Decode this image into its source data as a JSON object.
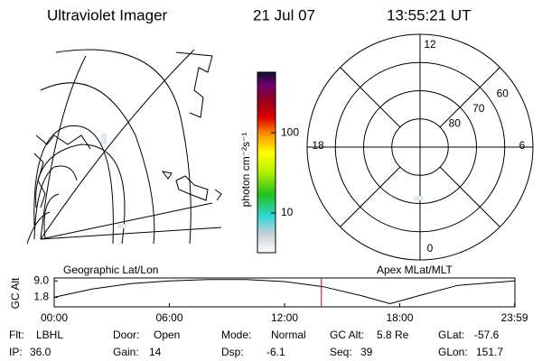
{
  "header": {
    "title": "Ultraviolet Imager",
    "date": "21 Jul 07",
    "time": "13:55:21 UT"
  },
  "map": {
    "label": "Geographic Lat/Lon"
  },
  "colorbar": {
    "label": "photon cm⁻²s⁻¹",
    "scale": "log",
    "lim": [
      3.2,
      570
    ],
    "ticks": [
      100,
      10
    ]
  },
  "polar": {
    "label": "Apex MLat/MLT",
    "mlt_ticks": [
      12,
      18,
      6,
      0
    ],
    "lat_lim": [
      50,
      90
    ],
    "lat_ticks": [
      60,
      70,
      80
    ]
  },
  "gc_alt": {
    "label": "GC Alt",
    "ylim": [
      -2.4,
      10.3
    ],
    "yticks": [
      {
        "value": 9.0,
        "label": "9.0"
      },
      {
        "value": 1.8,
        "label": "1.8"
      }
    ],
    "xlim": [
      0,
      24
    ],
    "xticks": [
      {
        "value": 0,
        "label": "00:00"
      },
      {
        "value": 6,
        "label": "06:00"
      },
      {
        "value": 12,
        "label": "12:00"
      },
      {
        "value": 18,
        "label": "18:00"
      },
      {
        "value": 23.98,
        "label": "23:59"
      }
    ],
    "x": [
      0,
      2,
      4,
      6,
      8,
      10,
      12,
      14,
      16,
      17.5,
      19,
      21,
      23.98
    ],
    "values": [
      1.8,
      5.5,
      7.8,
      9.0,
      9.6,
      9.6,
      8.7,
      6.5,
      2.5,
      -1.0,
      2.5,
      7.0,
      9.0
    ],
    "marker": 13.92
  },
  "footer": [
    [
      {
        "label": "Flt:",
        "value": "LBHL"
      },
      {
        "label": "Door:",
        "value": "Open"
      },
      {
        "label": "Mode:",
        "value": "Normal"
      },
      {
        "label": "GC Alt:",
        "value": "5.8 Re"
      },
      {
        "label": "GLat:",
        "value": "-57.6"
      }
    ],
    [
      {
        "label": "IP:",
        "value": "36.0"
      },
      {
        "label": "Gain:",
        "value": "14"
      },
      {
        "label": "Dsp:",
        "value": "-6.1"
      },
      {
        "label": "Seq:",
        "value": "39"
      },
      {
        "label": "GLon:",
        "value": "151.7"
      }
    ]
  ]
}
